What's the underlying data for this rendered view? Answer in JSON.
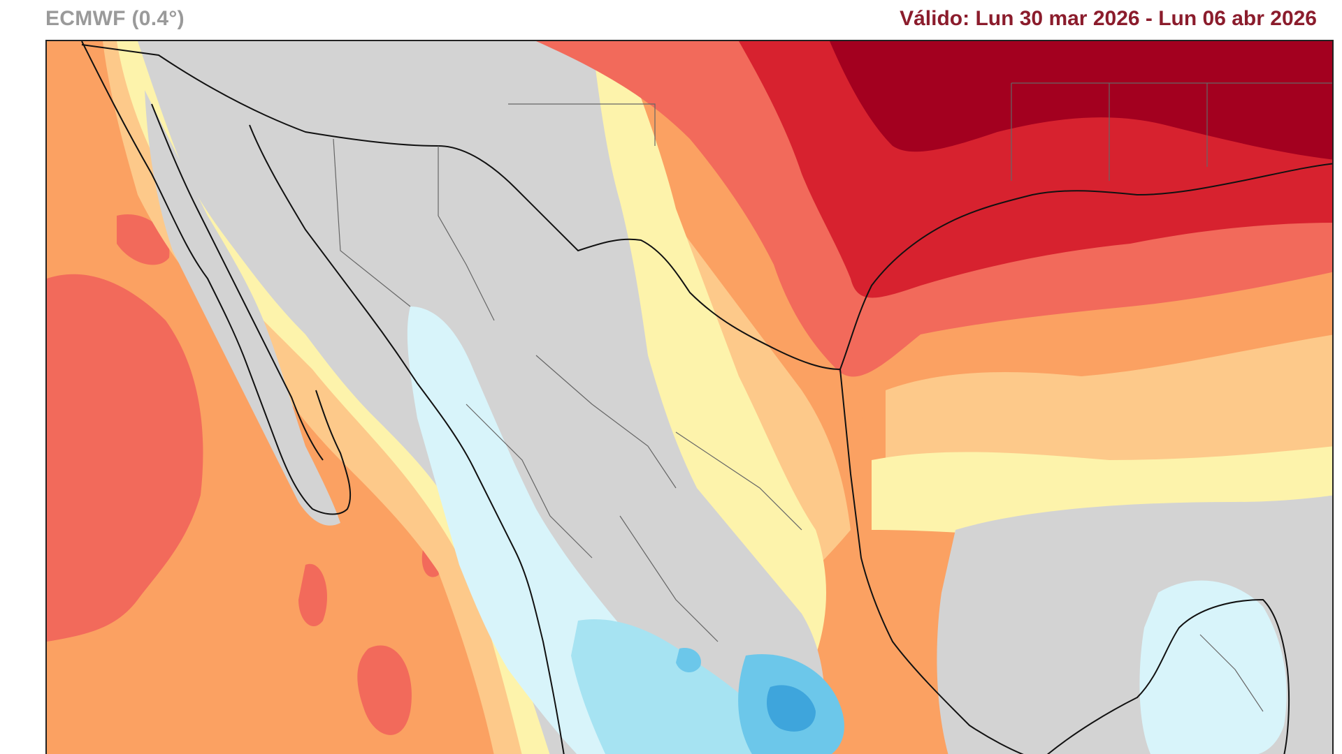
{
  "header": {
    "model_label": "ECMWF (0.4°)",
    "valid_prefix": "Válido:",
    "valid_range": "Lun 30 mar 2026 - Lun 06 abr 2026"
  },
  "map": {
    "region": "Mexico",
    "field": "temperature anomaly",
    "palette": {
      "dark_red": "#a3001f",
      "red": "#d7222f",
      "light_red": "#f26a5b",
      "orange": "#fba162",
      "light_orange": "#fdc98a",
      "yellow": "#fdf3ab",
      "grey": "#d3d3d3",
      "light_cyan": "#d8f4fa",
      "cyan": "#a6e3f2",
      "blue": "#6cc7ea",
      "dark_blue": "#3ea5dc"
    }
  }
}
